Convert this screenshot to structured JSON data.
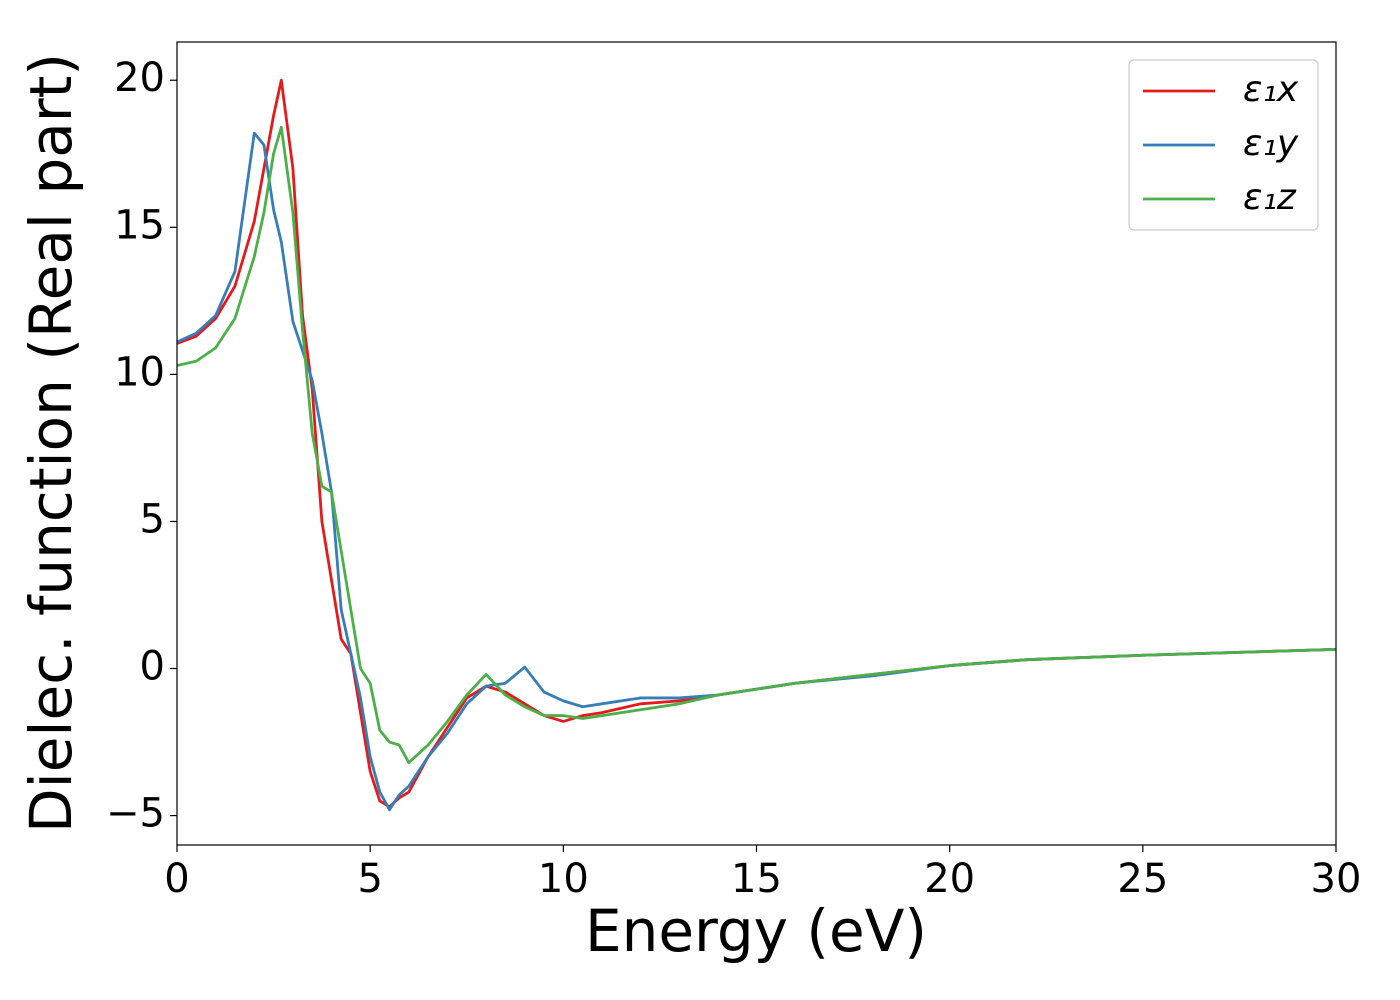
{
  "chart_data": {
    "type": "line",
    "xlabel": "Energy (eV)",
    "ylabel": "Dielec. function (Real part)",
    "x": [
      0,
      0.5,
      1,
      1.5,
      2,
      2.25,
      2.5,
      2.7,
      3,
      3.25,
      3.5,
      3.75,
      4,
      4.25,
      4.5,
      4.75,
      5,
      5.25,
      5.5,
      5.75,
      6,
      6.5,
      7,
      7.5,
      8,
      8.5,
      9,
      9.5,
      10,
      10.5,
      11,
      12,
      13,
      14,
      15,
      16,
      18,
      20,
      22,
      25,
      30
    ],
    "series": [
      {
        "name": "ε₁x",
        "color": "#e41a1c",
        "values": [
          11.05,
          11.3,
          11.9,
          13.0,
          15.2,
          17.0,
          18.8,
          20.0,
          17.0,
          12.0,
          9.5,
          5.0,
          3.0,
          1.0,
          0.5,
          -1.5,
          -3.5,
          -4.5,
          -4.7,
          -4.4,
          -4.2,
          -3.0,
          -2.0,
          -1.0,
          -0.6,
          -0.8,
          -1.2,
          -1.6,
          -1.8,
          -1.6,
          -1.5,
          -1.2,
          -1.1,
          -0.9,
          -0.7,
          -0.5,
          -0.2,
          0.1,
          0.3,
          0.45,
          0.65
        ]
      },
      {
        "name": "ε₁y",
        "color": "#377eb8",
        "values": [
          11.1,
          11.4,
          12.0,
          13.5,
          18.2,
          17.8,
          15.6,
          14.5,
          11.8,
          10.8,
          9.8,
          8.0,
          6.0,
          2.0,
          0.5,
          -1.0,
          -3.0,
          -4.2,
          -4.8,
          -4.3,
          -4.0,
          -3.0,
          -2.2,
          -1.2,
          -0.6,
          -0.5,
          0.05,
          -0.8,
          -1.1,
          -1.3,
          -1.2,
          -1.0,
          -1.0,
          -0.9,
          -0.7,
          -0.5,
          -0.25,
          0.1,
          0.3,
          0.45,
          0.65
        ]
      },
      {
        "name": "ε₁z",
        "color": "#4daf4a",
        "values": [
          10.3,
          10.45,
          10.9,
          11.9,
          14.0,
          15.5,
          17.5,
          18.4,
          15.5,
          11.5,
          8.0,
          6.2,
          6.0,
          4.0,
          2.0,
          0,
          -0.5,
          -2.1,
          -2.5,
          -2.6,
          -3.2,
          -2.6,
          -1.8,
          -0.9,
          -0.2,
          -0.9,
          -1.3,
          -1.6,
          -1.6,
          -1.7,
          -1.6,
          -1.4,
          -1.2,
          -0.9,
          -0.7,
          -0.5,
          -0.2,
          0.1,
          0.3,
          0.45,
          0.65
        ]
      }
    ],
    "xlim": [
      0,
      30
    ],
    "xticks": [
      0,
      5,
      10,
      15,
      20,
      25,
      30
    ],
    "ylim": [
      -6.0,
      21.3
    ],
    "yticks": [
      {
        "value": -5,
        "label": "−5"
      },
      0,
      5,
      10,
      15,
      20
    ],
    "grid": false,
    "legend": "upper right"
  }
}
